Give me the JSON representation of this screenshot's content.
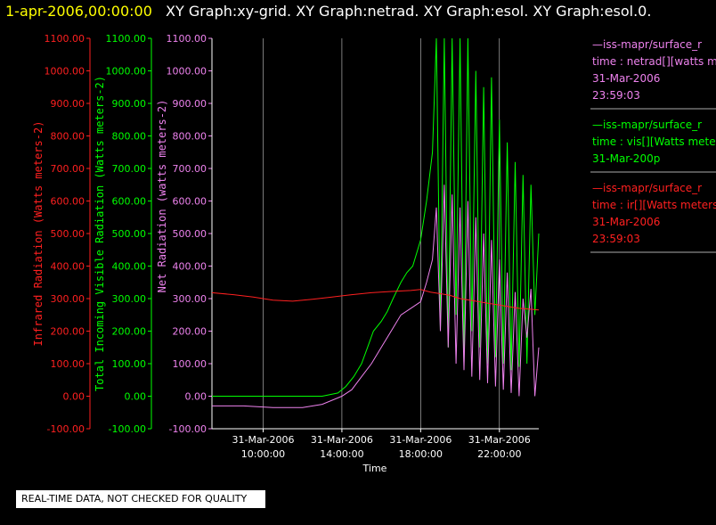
{
  "colors": {
    "background": "#000000",
    "ir": "#ff2020",
    "vis": "#00ff00",
    "net": "#ee82ee",
    "axis": "#ffffff",
    "title_date": "#ffff00",
    "title": "#ffffff",
    "grid": "#ffffff",
    "legend_sep": "#aaaaaa"
  },
  "title": {
    "date": "1-apr-2006,00:00:00",
    "graphs": "XY Graph:xy-grid.  XY Graph:netrad.  XY Graph:esol.  XY Graph:esol.0."
  },
  "qc_note": "REAL-TIME DATA, NOT CHECKED FOR QUALITY",
  "legend": [
    {
      "source": "—iss-mapr/surface_r",
      "variable": "time : netrad[][watts me",
      "date": "31-Mar-2006",
      "time": "23:59:03",
      "color": "net"
    },
    {
      "source": "—iss-mapr/surface_r",
      "variable": "time : vis[][Watts meter",
      "date": "31-Mar-200p",
      "time": "",
      "color": "vis"
    },
    {
      "source": "—iss-mapr/surface_r",
      "variable": "time : ir[][Watts meters",
      "date": "31-Mar-2006",
      "time": "23:59:03",
      "color": "ir"
    }
  ],
  "chart_data": {
    "type": "line",
    "xlabel": "Time",
    "x_ticks": [
      {
        "date": "31-Mar-2006",
        "time": "10:00:00",
        "hour": 10
      },
      {
        "date": "31-Mar-2006",
        "time": "14:00:00",
        "hour": 14
      },
      {
        "date": "31-Mar-2006",
        "time": "18:00:00",
        "hour": 18
      },
      {
        "date": "31-Mar-2006",
        "time": "22:00:00",
        "hour": 22
      }
    ],
    "xlim_hours": [
      7.4,
      24.0
    ],
    "grid": "vertical lines at x ticks",
    "axes": [
      {
        "key": "ir",
        "label": "Infrared Radiation (Watts meters-2)",
        "ylim": [
          -100,
          1100
        ],
        "ticks": [
          "-100.00",
          "0.00",
          "100.00",
          "200.00",
          "300.00",
          "400.00",
          "500.00",
          "600.00",
          "700.00",
          "800.00",
          "900.00",
          "1000.00",
          "1100.00"
        ]
      },
      {
        "key": "vis",
        "label": "Total Incoming Visible Radiation (Watts meters-2)",
        "ylim": [
          -100,
          1100
        ],
        "ticks": [
          "-100.00",
          "0.00",
          "100.00",
          "200.00",
          "300.00",
          "400.00",
          "500.00",
          "600.00",
          "700.00",
          "800.00",
          "900.00",
          "1000.00",
          "1100.00"
        ]
      },
      {
        "key": "net",
        "label": "Net Radiation (watts meters-2)",
        "ylim": [
          -100,
          1100
        ],
        "ticks": [
          "-100.00",
          "0.00",
          "100.00",
          "200.00",
          "300.00",
          "400.00",
          "500.00",
          "600.00",
          "700.00",
          "800.00",
          "900.00",
          "1000.00",
          "1100.00"
        ]
      }
    ],
    "series": [
      {
        "key": "vis",
        "x": [
          7.4,
          9.0,
          11.0,
          13.0,
          13.8,
          14.2,
          14.6,
          15.0,
          15.3,
          15.6,
          16.0,
          16.3,
          16.6,
          17.0,
          17.3,
          17.6,
          18.0,
          18.3,
          18.6,
          18.8,
          19.0,
          19.2,
          19.4,
          19.6,
          19.8,
          20.0,
          20.2,
          20.4,
          20.6,
          20.8,
          21.0,
          21.2,
          21.4,
          21.6,
          21.8,
          22.0,
          22.2,
          22.4,
          22.6,
          22.8,
          23.0,
          23.2,
          23.4,
          23.6,
          23.8,
          24.0
        ],
        "y": [
          0,
          0,
          0,
          0,
          10,
          30,
          60,
          100,
          150,
          200,
          230,
          260,
          300,
          350,
          380,
          400,
          480,
          600,
          750,
          1100,
          200,
          1100,
          150,
          1100,
          250,
          1100,
          100,
          1100,
          200,
          1000,
          150,
          950,
          100,
          980,
          120,
          850,
          100,
          780,
          80,
          720,
          90,
          680,
          100,
          650,
          250,
          500
        ]
      },
      {
        "key": "net",
        "x": [
          7.4,
          9.0,
          10.5,
          12.0,
          13.0,
          14.0,
          14.5,
          15.0,
          15.5,
          16.0,
          16.5,
          17.0,
          17.5,
          18.0,
          18.3,
          18.6,
          18.8,
          19.0,
          19.2,
          19.4,
          19.6,
          19.8,
          20.0,
          20.2,
          20.4,
          20.6,
          20.8,
          21.0,
          21.2,
          21.4,
          21.6,
          21.8,
          22.0,
          22.2,
          22.4,
          22.6,
          22.8,
          23.0,
          23.2,
          23.4,
          23.6,
          23.8,
          24.0
        ],
        "y": [
          -30,
          -30,
          -35,
          -35,
          -25,
          0,
          20,
          60,
          100,
          150,
          200,
          250,
          270,
          290,
          350,
          420,
          580,
          200,
          650,
          150,
          620,
          100,
          580,
          80,
          600,
          60,
          550,
          50,
          500,
          40,
          480,
          30,
          420,
          20,
          380,
          10,
          320,
          0,
          300,
          180,
          330,
          0,
          150
        ]
      },
      {
        "key": "ir",
        "x": [
          7.4,
          8.5,
          9.5,
          10.5,
          11.5,
          12.5,
          13.5,
          14.5,
          15.5,
          16.5,
          17.5,
          18.0,
          18.5,
          19.0,
          19.5,
          20.0,
          20.5,
          21.0,
          21.5,
          22.0,
          22.5,
          23.0,
          23.5,
          24.0
        ],
        "y": [
          318,
          312,
          305,
          295,
          292,
          298,
          305,
          312,
          318,
          322,
          325,
          328,
          320,
          315,
          310,
          300,
          295,
          290,
          285,
          280,
          275,
          270,
          268,
          265
        ]
      }
    ]
  }
}
